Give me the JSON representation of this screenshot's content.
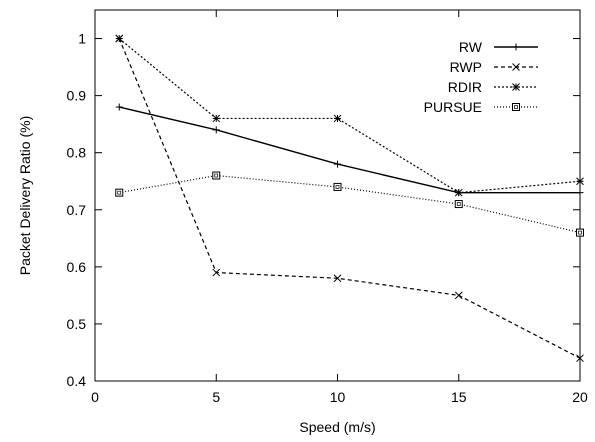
{
  "chart_data": {
    "type": "line",
    "title": "",
    "xlabel": "Speed (m/s)",
    "ylabel": "Packet Delivery Ratio (%)",
    "xlim": [
      0,
      20
    ],
    "ylim": [
      0.4,
      1.05
    ],
    "xticks": [
      0,
      5,
      10,
      15,
      20
    ],
    "xtick_labels": [
      "0",
      "5",
      "10",
      "15",
      "20"
    ],
    "yticks": [
      0.4,
      0.5,
      0.6,
      0.7,
      0.8,
      0.9,
      1.0
    ],
    "ytick_labels": [
      "0.4",
      "0.5",
      "0.6",
      "0.7",
      "0.8",
      "0.9",
      "1"
    ],
    "grid": false,
    "legend_position": "top-right",
    "series": [
      {
        "name": "RW",
        "marker": "plus",
        "dash": "solid",
        "x": [
          1,
          5,
          10,
          15,
          20
        ],
        "y": [
          0.88,
          0.84,
          0.78,
          0.73,
          0.73
        ]
      },
      {
        "name": "RWP",
        "marker": "cross",
        "dash": "dashed",
        "x": [
          1,
          5,
          10,
          15,
          20
        ],
        "y": [
          1.0,
          0.59,
          0.58,
          0.55,
          0.44
        ]
      },
      {
        "name": "RDIR",
        "marker": "star",
        "dash": "dotted",
        "x": [
          1,
          5,
          10,
          15,
          20
        ],
        "y": [
          1.0,
          0.86,
          0.86,
          0.73,
          0.75
        ]
      },
      {
        "name": "PURSUE",
        "marker": "square",
        "dash": "dotted-fine",
        "x": [
          1,
          5,
          10,
          15,
          20
        ],
        "y": [
          0.73,
          0.76,
          0.74,
          0.71,
          0.66
        ]
      }
    ]
  }
}
